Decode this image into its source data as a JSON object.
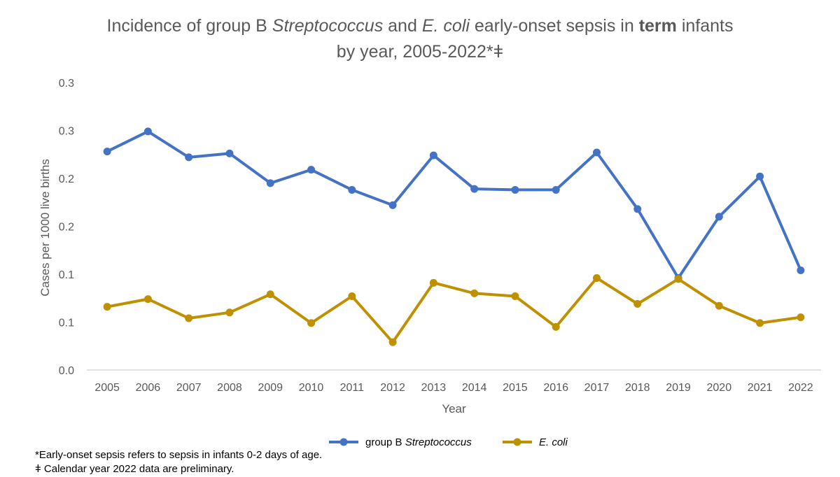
{
  "chart_data": {
    "type": "line",
    "title": {
      "line1": [
        {
          "text": "Incidence of group B ",
          "style": "normal"
        },
        {
          "text": "Streptococcus",
          "style": "italic"
        },
        {
          "text": " and ",
          "style": "normal"
        },
        {
          "text": "E. coli",
          "style": "italic"
        },
        {
          "text": " early-onset sepsis in ",
          "style": "normal"
        },
        {
          "text": "term",
          "style": "bold"
        },
        {
          "text": " infants",
          "style": "normal"
        }
      ],
      "line2": [
        {
          "text": "by year, 2005-2022*ǂ",
          "style": "normal"
        }
      ]
    },
    "xlabel": "Year",
    "ylabel": "Cases per 1000 live births",
    "categories": [
      "2005",
      "2006",
      "2007",
      "2008",
      "2009",
      "2010",
      "2011",
      "2012",
      "2013",
      "2014",
      "2015",
      "2016",
      "2017",
      "2018",
      "2019",
      "2020",
      "2021",
      "2022"
    ],
    "ylim": [
      0,
      0.3
    ],
    "yticks": [
      0,
      0.05,
      0.1,
      0.15,
      0.2,
      0.25,
      0.3
    ],
    "ytick_labels": [
      "0.0",
      "0.1",
      "0.1",
      "0.2",
      "0.2",
      "0.3",
      "0.3"
    ],
    "grid": false,
    "legend_position": "bottom",
    "series": [
      {
        "name": "group B Streptococcus",
        "legend_parts": [
          {
            "text": "group B ",
            "style": "normal"
          },
          {
            "text": "Streptococcus",
            "style": "italic"
          }
        ],
        "color": "#4472C4",
        "values": [
          0.228,
          0.249,
          0.222,
          0.226,
          0.195,
          0.209,
          0.188,
          0.172,
          0.224,
          0.189,
          0.188,
          0.188,
          0.227,
          0.168,
          0.096,
          0.16,
          0.202,
          0.104
        ]
      },
      {
        "name": "E. coli",
        "legend_parts": [
          {
            "text": "E. coli",
            "style": "italic"
          }
        ],
        "color": "#BF9000",
        "values": [
          0.066,
          0.074,
          0.054,
          0.06,
          0.079,
          0.049,
          0.077,
          0.029,
          0.091,
          0.08,
          0.077,
          0.045,
          0.096,
          0.069,
          0.095,
          0.067,
          0.049,
          0.055
        ]
      }
    ],
    "axis_color": "#D9D9D9"
  },
  "footnotes": [
    "*Early-onset sepsis refers to sepsis in infants 0-2 days of age.",
    "ǂ Calendar year 2022 data are preliminary."
  ]
}
